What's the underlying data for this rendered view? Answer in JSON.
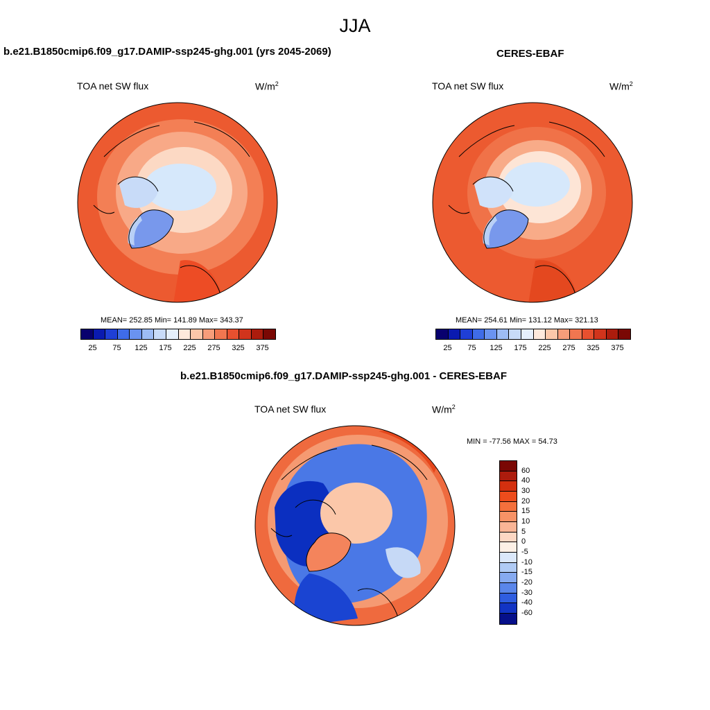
{
  "figure": {
    "title": "JJA",
    "panels": [
      {
        "id": "model",
        "title": "b.e21.B1850cmip6.f09_g17.DAMIP-ssp245-ghg.001 (yrs 2045-2069)",
        "variable": "TOA net SW flux",
        "units": "W/m",
        "units_sup": "2",
        "stats": "MEAN= 252.85  Min= 141.89  Max= 343.37"
      },
      {
        "id": "obs",
        "title": "CERES-EBAF",
        "variable": "TOA net SW flux",
        "units": "W/m",
        "units_sup": "2",
        "stats": "MEAN= 254.61  Min= 131.12  Max= 321.13"
      },
      {
        "id": "diff",
        "title": "b.e21.B1850cmip6.f09_g17.DAMIP-ssp245-ghg.001 - CERES-EBAF",
        "variable": "TOA net SW flux",
        "units": "W/m",
        "units_sup": "2",
        "stats": "MIN = -77.56 MAX =  54.73"
      }
    ],
    "colorbar_abs": {
      "ticks": [
        "25",
        "75",
        "125",
        "175",
        "225",
        "275",
        "325",
        "375"
      ],
      "colors": [
        "#08006e",
        "#0a1ab0",
        "#1f3fd6",
        "#3f6ce8",
        "#6a93f0",
        "#9dbcf5",
        "#c8dbf8",
        "#e6f0fc",
        "#fde9dc",
        "#fbc7a9",
        "#f79d7a",
        "#f17650",
        "#e8502f",
        "#d1341c",
        "#ac1c0d",
        "#7a0804"
      ]
    },
    "colorbar_diff": {
      "ticks": [
        "60",
        "40",
        "30",
        "20",
        "15",
        "10",
        "5",
        "0",
        "-5",
        "-10",
        "-15",
        "-20",
        "-30",
        "-40",
        "-60"
      ],
      "colors": [
        "#7a0804",
        "#ac1c0d",
        "#d4300f",
        "#ed4c1c",
        "#f4703c",
        "#f79266",
        "#fab596",
        "#fdd7c3",
        "#fdf0e6",
        "#dbe8fa",
        "#b0cbf5",
        "#86aaf0",
        "#5a86ea",
        "#2f5de0",
        "#1234c4",
        "#06108a"
      ]
    },
    "map_colors": {
      "ocean_high": "#ed5a30",
      "mid": "#f6a07a",
      "light": "#fbd4bf",
      "ice": "#d6e8fb",
      "greenland": "#7898ec",
      "diff_neg_strong": "#0b2fc0",
      "diff_neg": "#4f7ae6",
      "diff_neg_light": "#c6d9f6",
      "diff_pos": "#f5946a",
      "diff_pos_strong": "#e5461b"
    }
  }
}
